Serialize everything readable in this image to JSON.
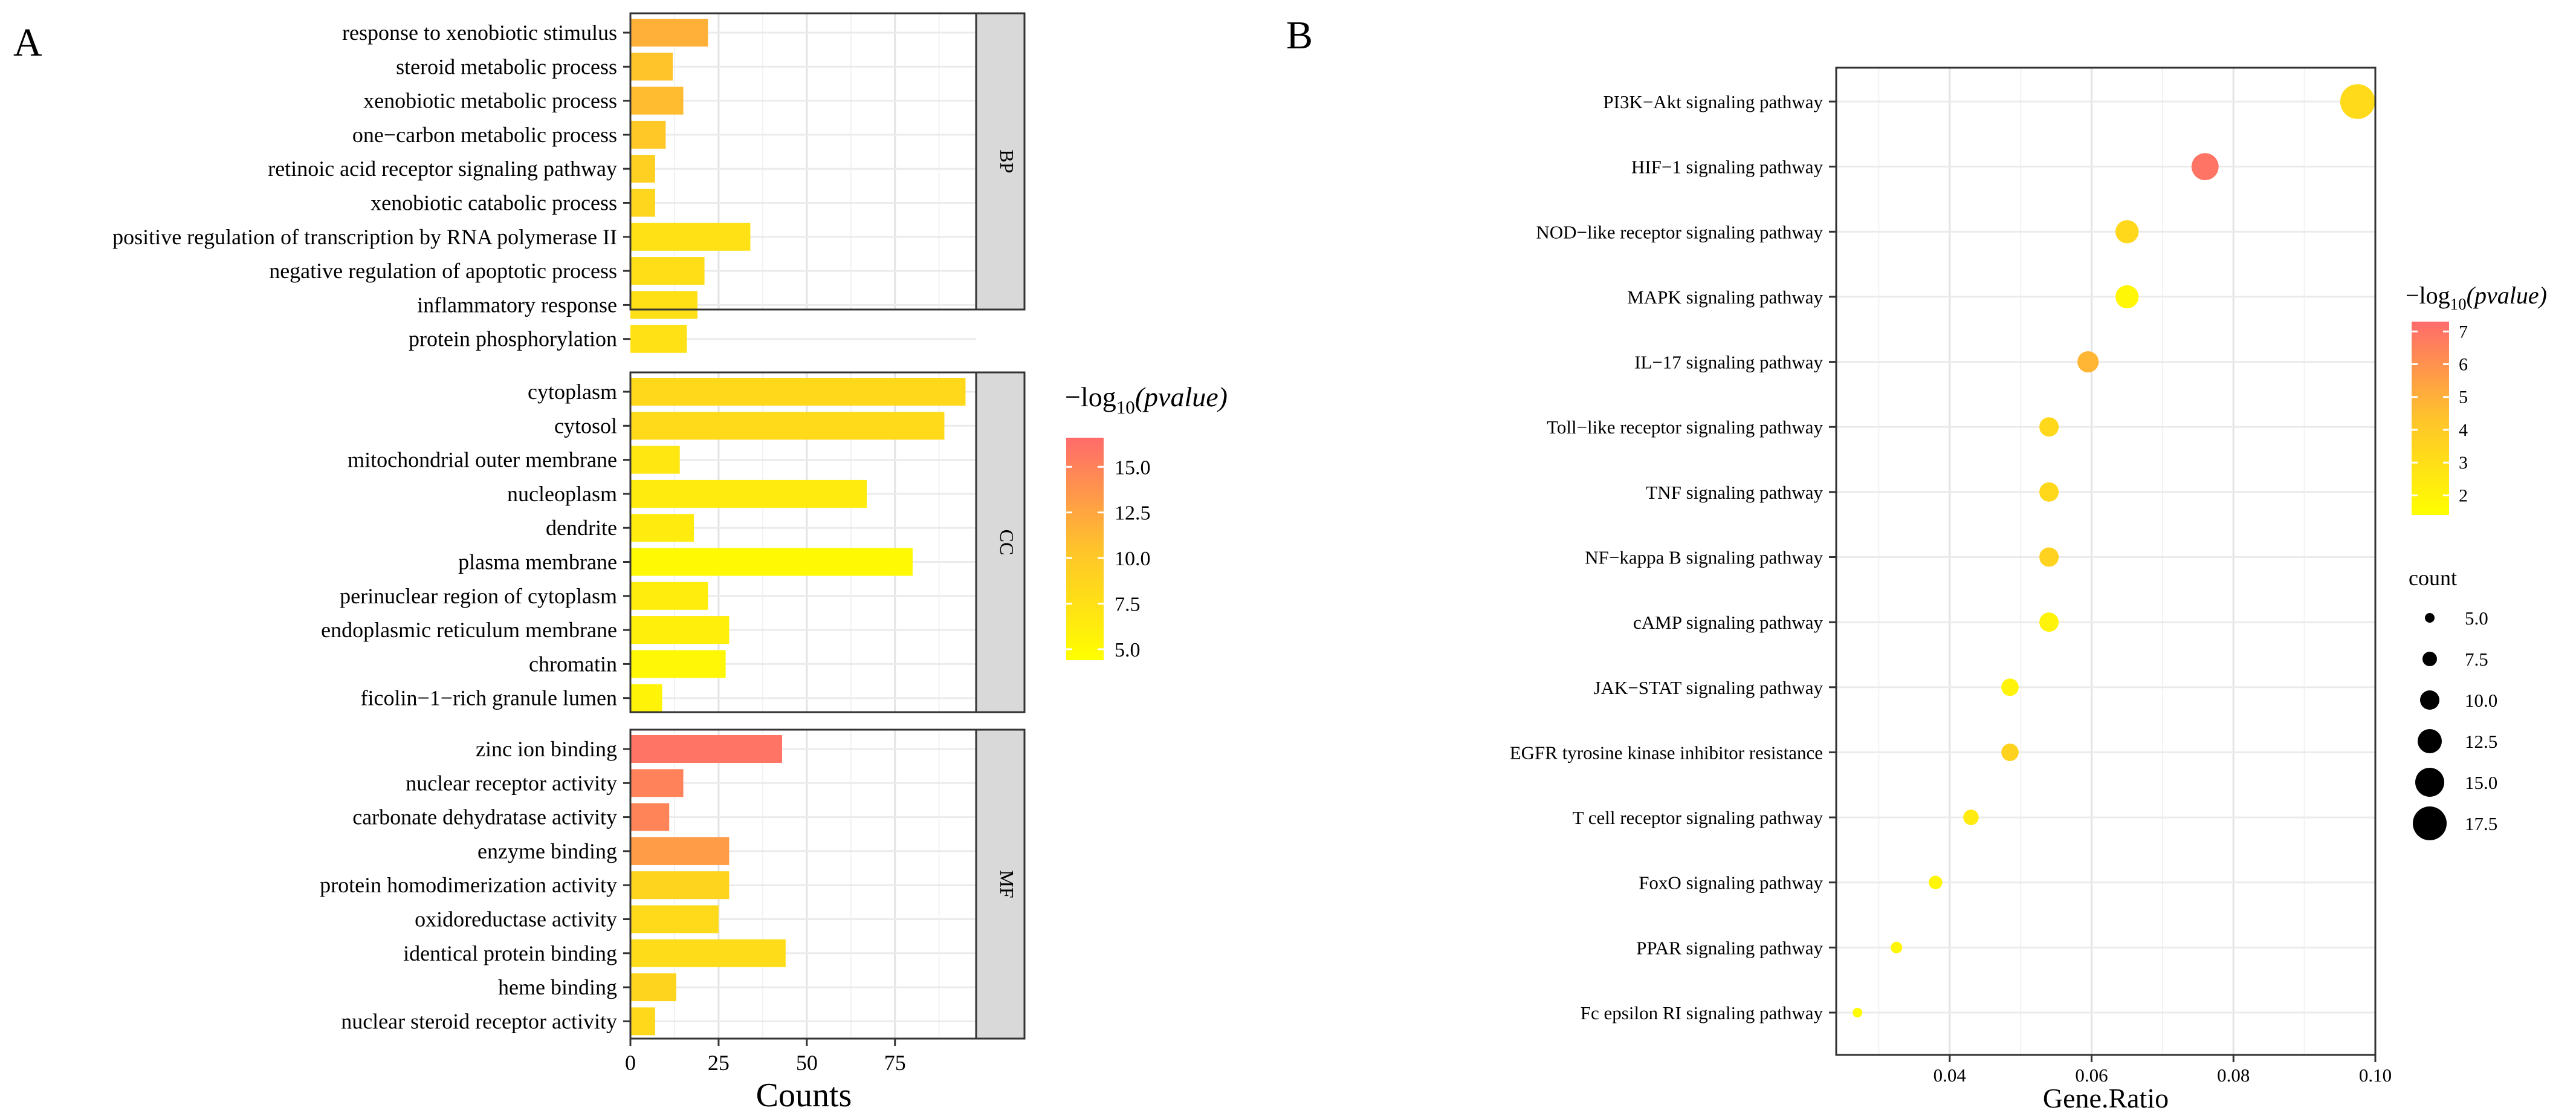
{
  "figure": {
    "panel_a_label": "A",
    "panel_b_label": "B"
  },
  "chart_data": [
    {
      "type": "bar",
      "orientation": "horizontal",
      "panel": "A",
      "xlabel": "Counts",
      "xlim": [
        0,
        98
      ],
      "xticks": [
        0,
        25,
        50,
        75
      ],
      "legend": {
        "title_prefix": "−log",
        "title_sub": "10",
        "title_italic": "(pvalue)",
        "ticks": [
          "15.0",
          "12.5",
          "10.0",
          "7.5",
          "5.0"
        ],
        "range": [
          4.4,
          16.6
        ],
        "colors": {
          "low": "#ffff00",
          "mid": "#ffc32b",
          "high": "#ff6b6b"
        }
      },
      "facets": [
        {
          "name": "BP",
          "categories": [
            "response to xenobiotic stimulus",
            "steroid metabolic process",
            "xenobiotic metabolic process",
            "one−carbon metabolic process",
            "retinoic acid receptor signaling pathway",
            "xenobiotic catabolic process",
            "positive regulation of transcription by RNA polymerase II",
            "negative regulation of apoptotic process",
            "inflammatory response",
            "protein phosphorylation"
          ],
          "values": [
            22,
            12,
            15,
            10,
            7,
            7,
            34,
            21,
            19,
            16
          ],
          "neglog10p": [
            11.8,
            10.4,
            11.0,
            10.0,
            9.2,
            8.6,
            7.4,
            7.8,
            7.6,
            7.4
          ]
        },
        {
          "name": "CC",
          "categories": [
            "cytoplasm",
            "cytosol",
            "mitochondrial outer membrane",
            "nucleoplasm",
            "dendrite",
            "plasma membrane",
            "perinuclear region of cytoplasm",
            "endoplasmic reticulum membrane",
            "chromatin",
            "ficolin−1−rich granule lumen"
          ],
          "values": [
            95,
            89,
            14,
            67,
            18,
            80,
            22,
            28,
            27,
            9
          ],
          "neglog10p": [
            8.4,
            8.2,
            6.8,
            6.4,
            6.4,
            5.0,
            6.2,
            6.0,
            5.2,
            5.6
          ]
        },
        {
          "name": "MF",
          "categories": [
            "zinc ion binding",
            "nuclear receptor activity",
            "carbonate dehydratase activity",
            "enzyme binding",
            "protein homodimerization activity",
            "oxidoreductase activity",
            "identical protein binding",
            "heme binding",
            "nuclear steroid receptor activity"
          ],
          "values": [
            43,
            15,
            11,
            28,
            28,
            25,
            44,
            13,
            7
          ],
          "neglog10p": [
            16.0,
            15.0,
            14.8,
            13.2,
            8.8,
            8.2,
            8.0,
            8.8,
            8.4
          ]
        }
      ]
    },
    {
      "type": "scatter",
      "panel": "B",
      "xlabel": "Gene.Ratio",
      "xlim": [
        0.024,
        0.1
      ],
      "xticks": [
        "0.04",
        "0.06",
        "0.08",
        "0.10"
      ],
      "categories": [
        "PI3K−Akt signaling pathway",
        "HIF−1 signaling pathway",
        "NOD−like receptor signaling pathway",
        "MAPK signaling pathway",
        "IL−17 signaling pathway",
        "Toll−like receptor signaling pathway",
        "TNF signaling pathway",
        "NF−kappa B signaling pathway",
        "cAMP signaling pathway",
        "JAK−STAT signaling pathway",
        "EGFR tyrosine kinase inhibitor resistance",
        "T cell receptor signaling pathway",
        "FoxO signaling pathway",
        "PPAR signaling pathway",
        "Fc epsilon RI signaling pathway"
      ],
      "gene_ratio": [
        0.0975,
        0.076,
        0.065,
        0.065,
        0.0595,
        0.054,
        0.054,
        0.054,
        0.054,
        0.0485,
        0.0485,
        0.043,
        0.038,
        0.0325,
        0.027
      ],
      "count": [
        18,
        14,
        12,
        12,
        11,
        10,
        10,
        10,
        10,
        9,
        9,
        8,
        7,
        6,
        5
      ],
      "neglog10p": [
        3.2,
        7.0,
        3.3,
        1.8,
        4.8,
        3.3,
        3.3,
        3.6,
        2.0,
        2.0,
        3.6,
        2.4,
        1.9,
        1.9,
        1.6
      ],
      "color_legend": {
        "title_prefix": "−log",
        "title_sub": "10",
        "title_italic": "(pvalue)",
        "ticks": [
          "7",
          "6",
          "5",
          "4",
          "3",
          "2"
        ],
        "tick_values": [
          7,
          6,
          5,
          4,
          3,
          2
        ],
        "range": [
          1.4,
          7.3
        ],
        "colors": {
          "low": "#ffff00",
          "mid": "#ffc32b",
          "high": "#ff6b6b"
        }
      },
      "size_legend": {
        "title": "count",
        "labels": [
          "5.0",
          "7.5",
          "10.0",
          "12.5",
          "15.0",
          "17.5"
        ],
        "values": [
          5,
          7.5,
          10,
          12.5,
          15,
          17.5
        ]
      }
    }
  ]
}
